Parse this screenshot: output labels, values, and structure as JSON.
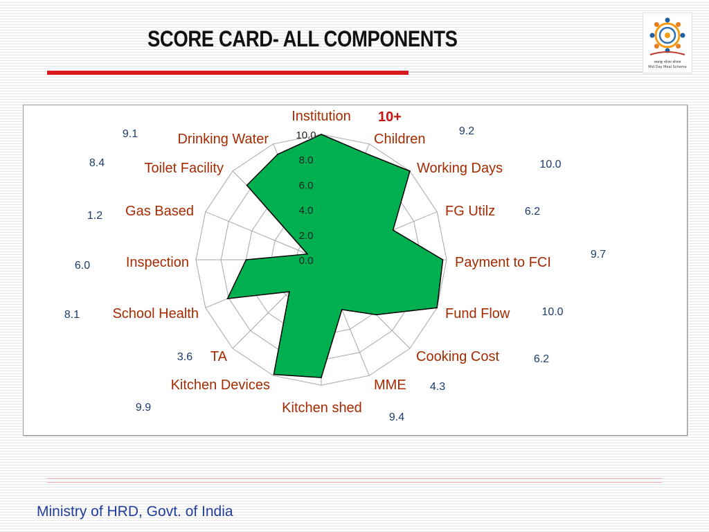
{
  "slide": {
    "title": "SCORE CARD- ALL COMPONENTS",
    "footer": "Ministry of HRD, Govt. of India",
    "logo_caption_line1": "मध्याह्न भोजन योजना",
    "logo_caption_line2": "Mid Day Meal Scheme"
  },
  "chart_data": {
    "type": "radar",
    "title": "",
    "categories": [
      "Institution",
      "Children",
      "Working Days",
      "FG Utilz",
      "Payment to FCI",
      "Fund Flow",
      "Cooking Cost",
      "MME",
      "Kitchen shed",
      "Kitchen Devices",
      "TA",
      "School Health",
      "Inspection",
      "Gas Based",
      "Toilet Facility",
      "Drinking Water"
    ],
    "series": [
      {
        "values": [
          10.0,
          9.2,
          10.0,
          6.2,
          9.7,
          10.0,
          6.2,
          4.3,
          9.4,
          9.9,
          3.6,
          8.1,
          6.0,
          1.2,
          8.4,
          9.1
        ]
      }
    ],
    "value_labels": [
      "10+",
      "9.2",
      "10.0",
      "6.2",
      "9.7",
      "10.0",
      "6.2",
      "4.3",
      "9.4",
      "9.9",
      "3.6",
      "8.1",
      "6.0",
      "1.2",
      "8.4",
      "9.1"
    ],
    "highlight_color": "#cc1111",
    "r_ticks": [
      "0.0",
      "2.0",
      "4.0",
      "6.0",
      "8.0",
      "10.0"
    ],
    "rlim": [
      0,
      10
    ],
    "grid": true,
    "legend": "none",
    "fill_color": "#00b050",
    "outline_color": "#000000",
    "grid_color": "#a6a6a6",
    "label_color": "#a52a00",
    "value_label_color": "#1b3a6b"
  }
}
